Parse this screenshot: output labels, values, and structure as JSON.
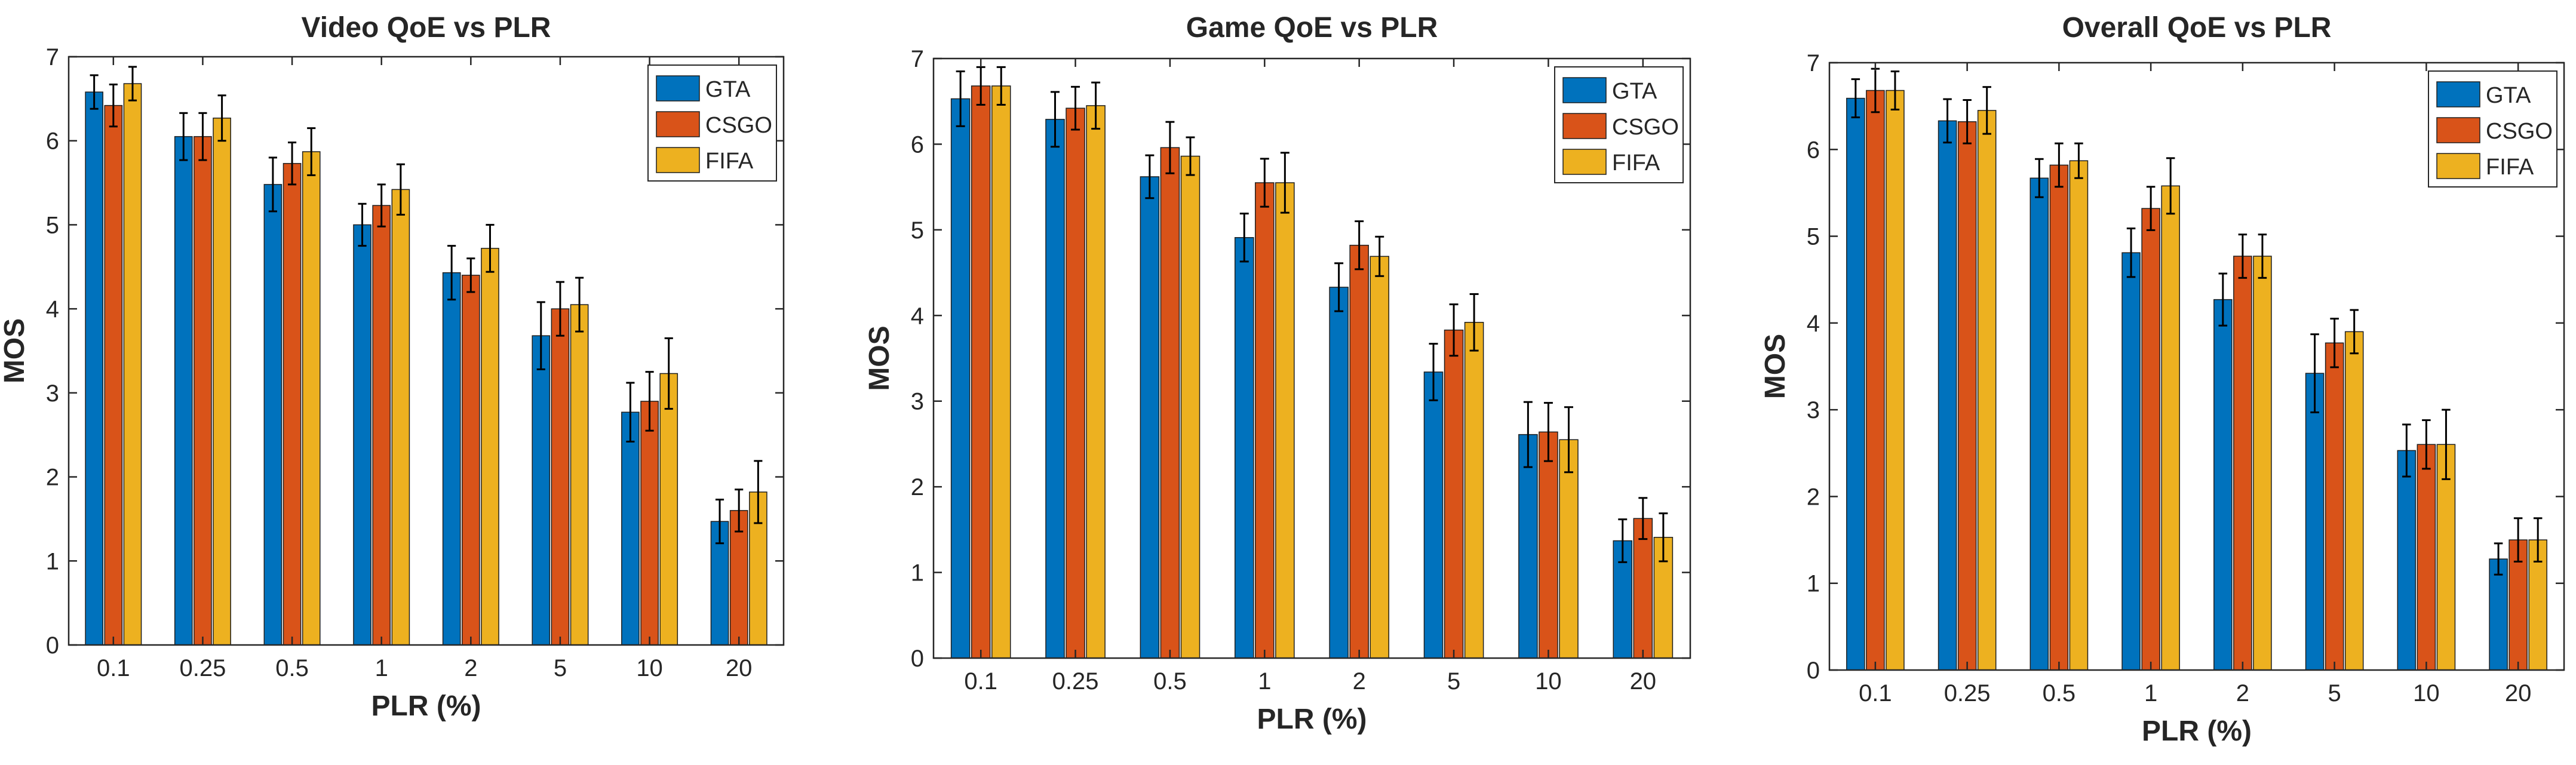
{
  "colors": {
    "GTA": "#0072bd",
    "CSGO": "#d95319",
    "FIFA": "#edb120",
    "axis": "#262626",
    "errorbar": "#000000"
  },
  "chart_data": [
    {
      "type": "bar",
      "title": "Video QoE vs PLR",
      "xlabel": "PLR (%)",
      "ylabel": "MOS",
      "ylim": [
        0,
        7
      ],
      "yticks": [
        "0",
        "1",
        "2",
        "3",
        "4",
        "5",
        "6",
        "7"
      ],
      "categories": [
        "0.1",
        "0.25",
        "0.5",
        "1",
        "2",
        "5",
        "10",
        "20"
      ],
      "legend_position": "top-right",
      "grid": false,
      "series": [
        {
          "name": "GTA",
          "values": [
            6.58,
            6.05,
            5.48,
            5.0,
            4.43,
            3.68,
            2.77,
            1.47
          ],
          "err": [
            0.2,
            0.28,
            0.32,
            0.25,
            0.32,
            0.4,
            0.35,
            0.26
          ]
        },
        {
          "name": "CSGO",
          "values": [
            6.42,
            6.05,
            5.73,
            5.23,
            4.4,
            4.0,
            2.9,
            1.6
          ],
          "err": [
            0.25,
            0.28,
            0.25,
            0.25,
            0.2,
            0.32,
            0.35,
            0.25
          ]
        },
        {
          "name": "FIFA",
          "values": [
            6.68,
            6.27,
            5.87,
            5.42,
            4.72,
            4.05,
            3.23,
            1.82
          ],
          "err": [
            0.2,
            0.27,
            0.28,
            0.3,
            0.28,
            0.32,
            0.42,
            0.37
          ]
        }
      ]
    },
    {
      "type": "bar",
      "title": "Game QoE vs PLR",
      "xlabel": "PLR (%)",
      "ylabel": "MOS",
      "ylim": [
        0,
        7
      ],
      "yticks": [
        "0",
        "1",
        "2",
        "3",
        "4",
        "5",
        "6",
        "7"
      ],
      "categories": [
        "0.1",
        "0.25",
        "0.5",
        "1",
        "2",
        "5",
        "10",
        "20"
      ],
      "legend_position": "top-right",
      "grid": false,
      "series": [
        {
          "name": "GTA",
          "values": [
            6.53,
            6.29,
            5.62,
            4.91,
            4.33,
            3.34,
            2.61,
            1.37
          ],
          "err": [
            0.32,
            0.32,
            0.25,
            0.28,
            0.28,
            0.33,
            0.38,
            0.25
          ]
        },
        {
          "name": "CSGO",
          "values": [
            6.68,
            6.42,
            5.96,
            5.55,
            4.82,
            3.83,
            2.64,
            1.63
          ],
          "err": [
            0.22,
            0.25,
            0.3,
            0.28,
            0.28,
            0.3,
            0.34,
            0.24
          ]
        },
        {
          "name": "FIFA",
          "values": [
            6.68,
            6.45,
            5.86,
            5.55,
            4.69,
            3.92,
            2.55,
            1.41
          ],
          "err": [
            0.22,
            0.27,
            0.22,
            0.35,
            0.23,
            0.33,
            0.38,
            0.28
          ]
        }
      ]
    },
    {
      "type": "bar",
      "title": "Overall QoE vs PLR",
      "xlabel": "PLR (%)",
      "ylabel": "MOS",
      "ylim": [
        0,
        7
      ],
      "yticks": [
        "0",
        "1",
        "2",
        "3",
        "4",
        "5",
        "6",
        "7"
      ],
      "categories": [
        "0.1",
        "0.25",
        "0.5",
        "1",
        "2",
        "5",
        "10",
        "20"
      ],
      "legend_position": "top-right",
      "grid": false,
      "series": [
        {
          "name": "GTA",
          "values": [
            6.59,
            6.33,
            5.67,
            4.81,
            4.27,
            3.42,
            2.53,
            1.28
          ],
          "err": [
            0.22,
            0.25,
            0.22,
            0.28,
            0.3,
            0.45,
            0.3,
            0.18
          ]
        },
        {
          "name": "CSGO",
          "values": [
            6.68,
            6.32,
            5.82,
            5.32,
            4.77,
            3.77,
            2.6,
            1.5
          ],
          "err": [
            0.25,
            0.25,
            0.25,
            0.25,
            0.25,
            0.28,
            0.28,
            0.25
          ]
        },
        {
          "name": "FIFA",
          "values": [
            6.68,
            6.45,
            5.87,
            5.58,
            4.77,
            3.9,
            2.6,
            1.5
          ],
          "err": [
            0.22,
            0.27,
            0.2,
            0.32,
            0.25,
            0.25,
            0.4,
            0.25
          ]
        }
      ]
    }
  ]
}
